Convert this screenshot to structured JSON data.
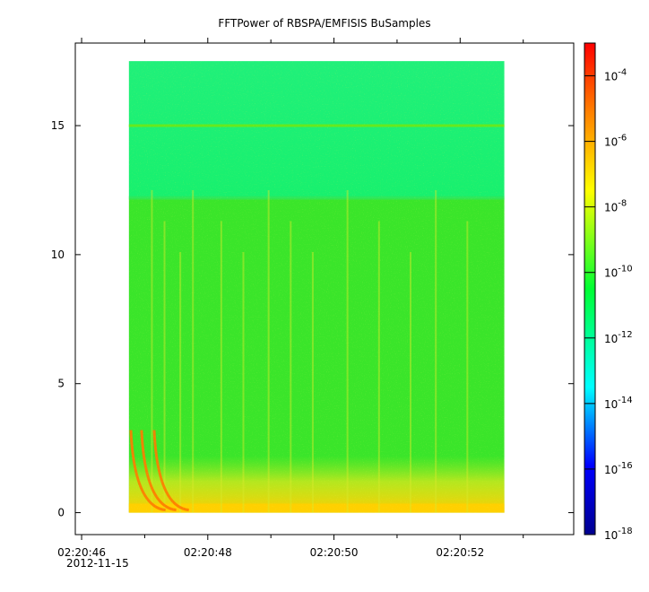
{
  "chart_data": {
    "type": "heatmap",
    "title": "FFTPower of RBSPA/EMFISIS  BuSamples",
    "xlabel": "",
    "ylabel": "",
    "x_date": "2012-11-15",
    "xlim_seconds": [
      45.9,
      53.8
    ],
    "ylim": [
      -0.85,
      18.2
    ],
    "x_ticks": [
      {
        "value": 46,
        "label": "02:20:46"
      },
      {
        "value": 48,
        "label": "02:20:48"
      },
      {
        "value": 50,
        "label": "02:20:50"
      },
      {
        "value": 52,
        "label": "02:20:52"
      }
    ],
    "x_minor_ticks": [
      47,
      49,
      51,
      53
    ],
    "y_ticks": [
      {
        "value": 0,
        "label": "0"
      },
      {
        "value": 5,
        "label": "5"
      },
      {
        "value": 10,
        "label": "10"
      },
      {
        "value": 15,
        "label": "15"
      }
    ],
    "data_extent": {
      "x": [
        46.75,
        52.7
      ],
      "y": [
        0,
        17.5
      ]
    },
    "colorbar": {
      "scale": "log",
      "range": [
        1e-18,
        0.001
      ],
      "ticks": [
        {
          "base": "10",
          "exp": "-4"
        },
        {
          "base": "10",
          "exp": "-6"
        },
        {
          "base": "10",
          "exp": "-8"
        },
        {
          "base": "10",
          "exp": "-10"
        },
        {
          "base": "10",
          "exp": "-12"
        },
        {
          "base": "10",
          "exp": "-14"
        },
        {
          "base": "10",
          "exp": "-16"
        },
        {
          "base": "10",
          "exp": "-18"
        }
      ]
    },
    "colors": {
      "upper_band": "#19f070",
      "main_band": "#3ae52a",
      "low_band": "#ffd000",
      "line_at_15": "#66e81e",
      "streaks": "#d8e82a",
      "dispersion": "#ff7a00"
    }
  }
}
